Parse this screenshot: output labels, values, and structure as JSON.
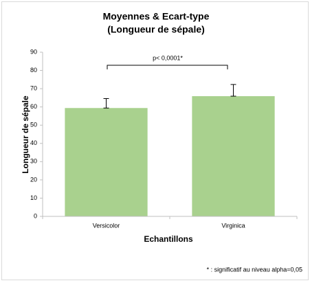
{
  "chart_data": {
    "type": "bar",
    "title": "Moyennes & Ecart-type",
    "subtitle": "(Longueur de sépale)",
    "x_label": "Echantillons",
    "y_label": "Longueur de sépale",
    "categories": [
      "Versicolor",
      "Virginica"
    ],
    "values": [
      59.4,
      65.9
    ],
    "errors": [
      5.2,
      6.4
    ],
    "color": "#a9d18e",
    "ylim": [
      0,
      90
    ],
    "yticks": [
      0,
      10,
      20,
      30,
      40,
      50,
      60,
      70,
      80,
      90
    ],
    "grid": false,
    "annotation": "p< 0,0001*",
    "footnote": "* : significatif au niveau alpha=0,05"
  }
}
